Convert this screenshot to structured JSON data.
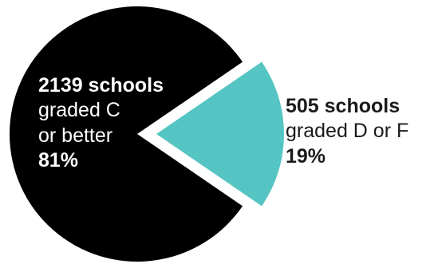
{
  "chart_data": {
    "type": "pie",
    "title": "",
    "colors": [
      "#000000",
      "#55c5c3"
    ],
    "exploded_slice": 1,
    "slices": [
      {
        "count": 2139,
        "value_percent": 81,
        "lines": [
          "2139 schools",
          "graded C",
          "or better",
          "81%"
        ]
      },
      {
        "count": 505,
        "value_percent": 19,
        "lines": [
          "505 schools",
          "graded D or F",
          "19%"
        ]
      }
    ]
  }
}
